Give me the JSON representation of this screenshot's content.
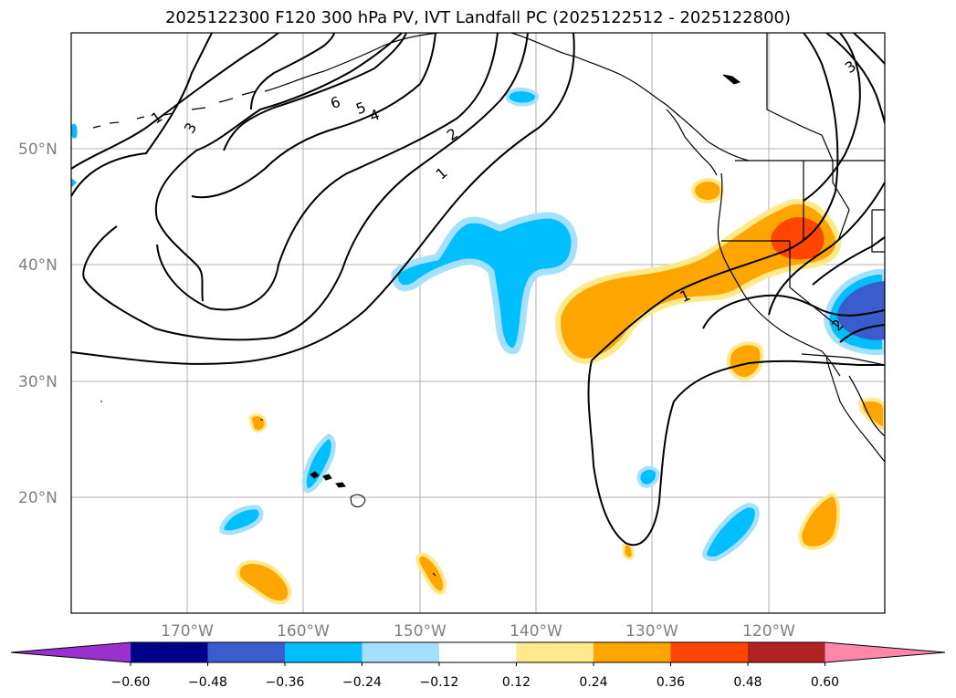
{
  "title": "2025122300 F120 300 hPa PV, IVT Landfall PC (2025122512 - 2025122800)",
  "latitudes": [
    "50°N",
    "40°N",
    "30°N",
    "20°N"
  ],
  "longitudes": [
    "170°W",
    "160°W",
    "150°W",
    "140°W",
    "130°W",
    "120°W"
  ],
  "colorbar": {
    "ticks": [
      "−0.60",
      "−0.48",
      "−0.36",
      "−0.24",
      "−0.12",
      "0.12",
      "0.24",
      "0.36",
      "0.48",
      "0.60"
    ],
    "colors": [
      "#9b30d0",
      "#00008b",
      "#3a5ccc",
      "#00bfff",
      "#a6e0ff",
      "#ffffff",
      "#ffe98a",
      "#ffa500",
      "#ff4500",
      "#b22222",
      "#ff88aa"
    ]
  },
  "contour_labels": [
    "1",
    "3",
    "6",
    "5",
    "4",
    "2",
    "1",
    "3",
    "1",
    "2"
  ]
}
